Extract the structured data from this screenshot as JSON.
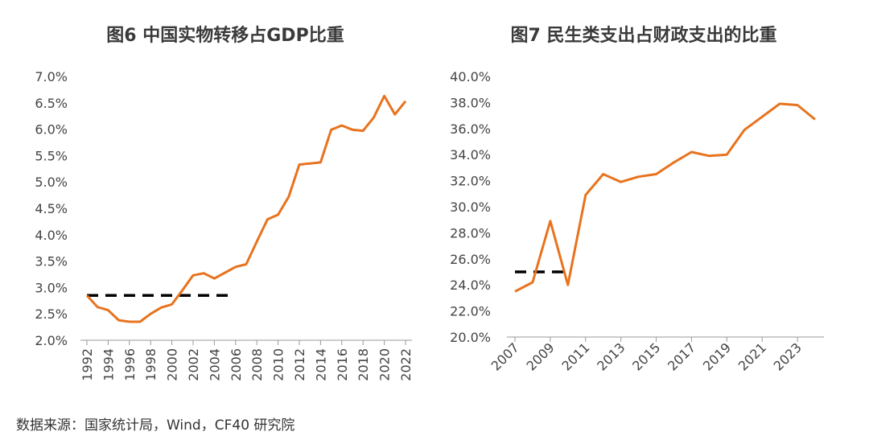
{
  "chart_data": [
    {
      "type": "line",
      "title": "图6 中国实物转移占GDP比重",
      "xlabel": "",
      "ylabel": "",
      "ylim": [
        2.0,
        7.0
      ],
      "y_ticks": [
        "2.0%",
        "2.5%",
        "3.0%",
        "3.5%",
        "4.0%",
        "4.5%",
        "5.0%",
        "5.5%",
        "6.0%",
        "6.5%",
        "7.0%"
      ],
      "x_ticks": [
        "1992",
        "1994",
        "1996",
        "1998",
        "2000",
        "2002",
        "2004",
        "2006",
        "2008",
        "2010",
        "2012",
        "2014",
        "2016",
        "2018",
        "2020",
        "2022"
      ],
      "grid": false,
      "x": [
        1992,
        1993,
        1994,
        1995,
        1996,
        1997,
        1998,
        1999,
        2000,
        2001,
        2002,
        2003,
        2004,
        2005,
        2006,
        2007,
        2008,
        2009,
        2010,
        2011,
        2012,
        2013,
        2014,
        2015,
        2016,
        2017,
        2018,
        2019,
        2020,
        2021,
        2022
      ],
      "series": [
        {
          "color": "#E8731E",
          "values": [
            2.85,
            2.63,
            2.57,
            2.38,
            2.35,
            2.35,
            2.5,
            2.62,
            2.68,
            2.95,
            3.23,
            3.27,
            3.17,
            3.28,
            3.39,
            3.44,
            3.87,
            4.29,
            4.38,
            4.72,
            5.33,
            5.35,
            5.37,
            5.99,
            6.07,
            5.99,
            5.97,
            6.22,
            6.63,
            6.28,
            6.53
          ]
        }
      ],
      "reference_line": {
        "y": 2.85,
        "x_start": 1992,
        "x_end": 2005.5,
        "style": "dashed",
        "color": "#000000"
      }
    },
    {
      "type": "line",
      "title": "图7 民生类支出占财政支出的比重",
      "xlabel": "",
      "ylabel": "",
      "ylim": [
        20.0,
        40.0
      ],
      "y_ticks": [
        "20.0%",
        "22.0%",
        "24.0%",
        "26.0%",
        "28.0%",
        "30.0%",
        "32.0%",
        "34.0%",
        "36.0%",
        "38.0%",
        "40.0%"
      ],
      "x_ticks": [
        "2007",
        "2009",
        "2011",
        "2013",
        "2015",
        "2017",
        "2019",
        "2021",
        "2023"
      ],
      "grid": false,
      "x": [
        2007,
        2008,
        2009,
        2010,
        2011,
        2012,
        2013,
        2014,
        2015,
        2016,
        2017,
        2018,
        2019,
        2020,
        2021,
        2022,
        2023,
        2024
      ],
      "series": [
        {
          "color": "#E8731E",
          "values": [
            23.5,
            24.2,
            28.9,
            24.0,
            30.9,
            32.5,
            31.9,
            32.3,
            32.5,
            33.4,
            34.2,
            33.9,
            34.0,
            35.9,
            36.9,
            37.9,
            37.8,
            36.7
          ]
        }
      ],
      "reference_line": {
        "y": 25.0,
        "x_start": 2007,
        "x_end": 2010,
        "style": "dashed",
        "color": "#000000"
      }
    }
  ],
  "footer": {
    "source": "数据来源：国家统计局，Wind，CF40 研究院"
  }
}
